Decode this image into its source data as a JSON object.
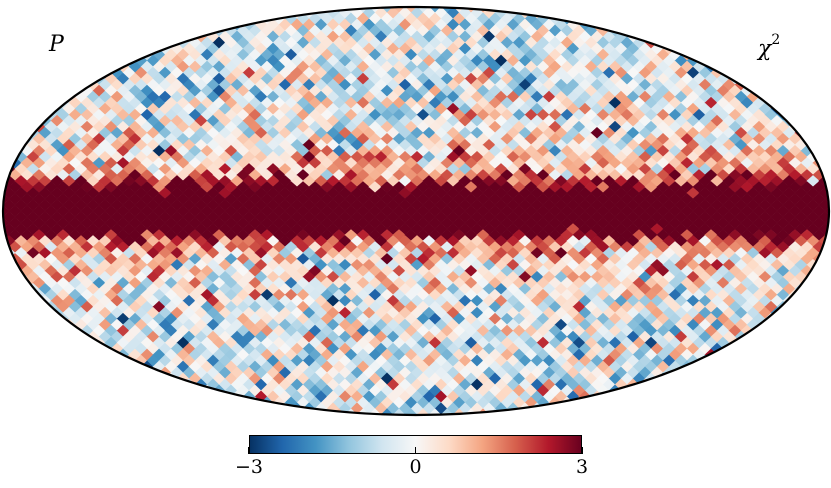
{
  "map": {
    "projection": "mollweide",
    "left_label": "P",
    "right_label_base": "χ",
    "right_label_sup": "2",
    "colormap": "RdBu_r",
    "colors": {
      "low": "#053061",
      "mid": "#f7f7f7",
      "high": "#67001f",
      "outline": "#000000"
    }
  },
  "colorbar": {
    "min": -3,
    "max": 3,
    "ticks": [
      {
        "value": -3,
        "label": "−3"
      },
      {
        "value": 0,
        "label": "0"
      },
      {
        "value": 3,
        "label": "3"
      }
    ]
  }
}
